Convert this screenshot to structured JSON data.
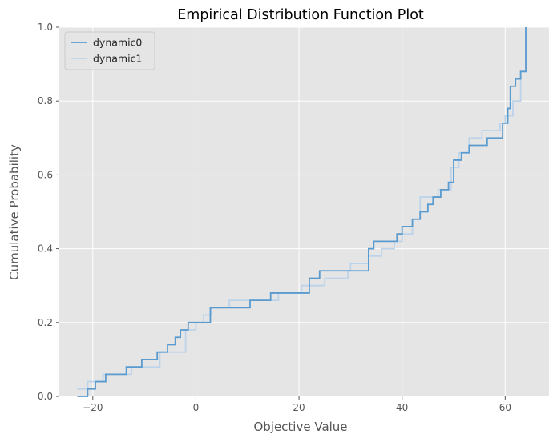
{
  "chart_data": {
    "type": "line",
    "step": true,
    "title": "Empirical Distribution Function Plot",
    "xlabel": "Objective Value",
    "ylabel": "Cumulative Probability",
    "xlim": [
      -26.5,
      68.5
    ],
    "ylim": [
      0,
      1
    ],
    "xticks": [
      -20,
      0,
      20,
      40,
      60
    ],
    "xtick_labels": [
      "−20",
      "0",
      "20",
      "40",
      "60"
    ],
    "yticks": [
      0,
      0.2,
      0.4,
      0.6,
      0.8,
      1.0
    ],
    "ytick_labels": [
      "0.0",
      "0.2",
      "0.4",
      "0.6",
      "0.8",
      "1.0"
    ],
    "grid": true,
    "background": "#e5e5e5",
    "legend_position": "upper-left",
    "series": [
      {
        "name": "dynamic0",
        "color": "#5a9bcf",
        "x": [
          -21.0,
          -20.5,
          -19.5,
          -17.5,
          -13.5,
          -10.5,
          -7.5,
          -5.5,
          -4.0,
          -3.0,
          -1.5,
          1.0,
          2.8,
          4.5,
          10.5,
          13.0,
          14.5,
          22.0,
          24.0,
          27.5,
          33.5,
          34.5,
          35.5,
          39.0,
          40.0,
          42.0,
          43.5,
          45.0,
          46.0,
          47.5,
          49.0,
          50.0,
          51.5,
          53.0,
          56.5,
          59.5,
          60.5,
          61.0,
          62.0,
          63.0,
          64.0
        ],
        "y": [
          0.02,
          0.02,
          0.04,
          0.06,
          0.08,
          0.1,
          0.12,
          0.14,
          0.16,
          0.18,
          0.2,
          0.2,
          0.24,
          0.24,
          0.26,
          0.26,
          0.28,
          0.32,
          0.34,
          0.34,
          0.4,
          0.42,
          0.42,
          0.44,
          0.46,
          0.48,
          0.5,
          0.52,
          0.54,
          0.56,
          0.58,
          0.64,
          0.66,
          0.68,
          0.7,
          0.74,
          0.78,
          0.84,
          0.86,
          0.88,
          1.0
        ],
        "x_start": -23.0
      },
      {
        "name": "dynamic1",
        "color": "#bdd3ea",
        "x": [
          -21.0,
          -18.0,
          -12.5,
          -11.0,
          -7.0,
          -6.0,
          -2.0,
          0.0,
          1.5,
          3.0,
          6.5,
          11.0,
          16.0,
          17.0,
          20.5,
          25.0,
          29.5,
          30.0,
          33.5,
          36.0,
          38.5,
          40.0,
          42.0,
          43.5,
          45.5,
          47.0,
          49.5,
          51.0,
          53.0,
          55.5,
          59.0,
          60.0,
          61.5,
          63.0,
          64.0
        ],
        "y": [
          0.04,
          0.06,
          0.08,
          0.08,
          0.12,
          0.12,
          0.18,
          0.2,
          0.22,
          0.24,
          0.26,
          0.26,
          0.28,
          0.28,
          0.3,
          0.32,
          0.34,
          0.36,
          0.38,
          0.4,
          0.42,
          0.44,
          0.48,
          0.54,
          0.54,
          0.56,
          0.62,
          0.66,
          0.7,
          0.72,
          0.74,
          0.76,
          0.8,
          0.88,
          1.0
        ],
        "x_start": -23.0,
        "y_start": 0.02
      }
    ]
  }
}
